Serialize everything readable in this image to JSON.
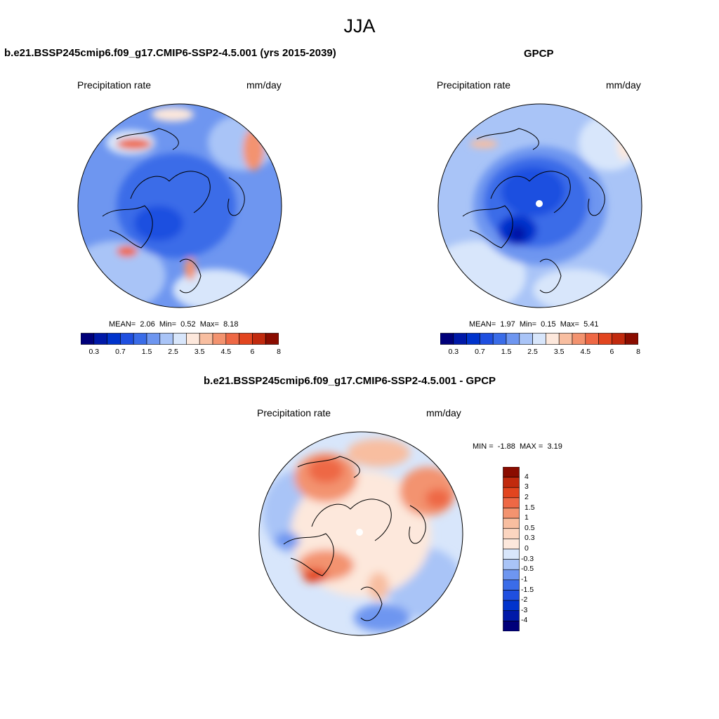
{
  "main_title": "JJA",
  "panels": [
    {
      "title": "b.e21.BSSP245cmip6.f09_g17.CMIP6-SSP2-4.5.001 (yrs 2015-2039)",
      "left_label": "Precipitation rate",
      "right_label": "mm/day",
      "stats": {
        "mean_label": "MEAN=",
        "mean": "2.06",
        "min_label": "Min=",
        "min": "0.52",
        "max_label": "Max=",
        "max": "8.18"
      }
    },
    {
      "title": "GPCP",
      "left_label": "Precipitation rate",
      "right_label": "mm/day",
      "stats": {
        "mean_label": "MEAN=",
        "mean": "1.97",
        "min_label": "Min=",
        "min": "0.15",
        "max_label": "Max=",
        "max": "5.41"
      }
    },
    {
      "title": "b.e21.BSSP245cmip6.f09_g17.CMIP6-SSP2-4.5.001 - GPCP",
      "left_label": "Precipitation rate",
      "right_label": "mm/day",
      "stats": {
        "min_label": "MIN =",
        "min": "-1.88",
        "max_label": "MAX =",
        "max": "3.19"
      }
    }
  ],
  "precip_colorbar": {
    "colors": [
      "#00007a",
      "#0019a8",
      "#0033cc",
      "#1f4fe0",
      "#3a6ce8",
      "#6e96f0",
      "#a9c4f7",
      "#d8e6fb",
      "#fde8dc",
      "#f8bea0",
      "#f3936f",
      "#ee6845",
      "#e2451f",
      "#c12a0e",
      "#8a0c00"
    ],
    "tick_labels": [
      "0.3",
      "0.7",
      "1.5",
      "2.5",
      "3.5",
      "4.5",
      "6",
      "8"
    ]
  },
  "diff_colorbar": {
    "colors": [
      "#8a0c00",
      "#c12a0e",
      "#e2451f",
      "#ee6845",
      "#f3936f",
      "#f8bea0",
      "#fbd5c0",
      "#fde8dc",
      "#d8e6fb",
      "#a9c4f7",
      "#6e96f0",
      "#3a6ce8",
      "#1f4fe0",
      "#0033cc",
      "#0019a8",
      "#00007a"
    ],
    "tick_labels": [
      "4",
      "3",
      "2",
      "1.5",
      "1",
      "0.5",
      "0.3",
      "0",
      "-0.3",
      "-0.5",
      "-1",
      "-1.5",
      "-2",
      "-3",
      "-4"
    ]
  }
}
